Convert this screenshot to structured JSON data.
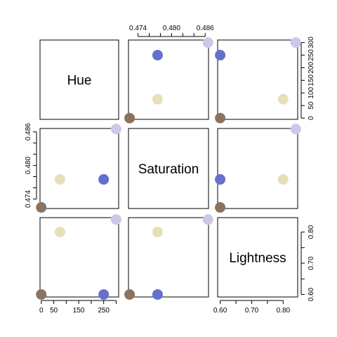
{
  "chart_data": {
    "type": "scatter",
    "variables": [
      "Hue",
      "Saturation",
      "Lightness"
    ],
    "points": [
      {
        "color": "#8B7360",
        "Hue": 0,
        "Saturation": 0.4725,
        "Lightness": 0.6
      },
      {
        "color": "#E6E0B8",
        "Hue": 75,
        "Saturation": 0.4775,
        "Lightness": 0.8
      },
      {
        "color": "#6670CC",
        "Hue": 250,
        "Saturation": 0.4775,
        "Lightness": 0.6
      },
      {
        "color": "#CCC8E8",
        "Hue": 300,
        "Saturation": 0.4865,
        "Lightness": 0.84
      }
    ],
    "axes": {
      "Hue": {
        "range": [
          -5,
          310
        ],
        "ticks": [
          0,
          50,
          100,
          150,
          200,
          250,
          300
        ],
        "labels": [
          "0",
          "50",
          "",
          "150",
          "",
          "250",
          ""
        ]
      },
      "Saturation": {
        "range": [
          0.4723,
          0.4866
        ],
        "ticks": [
          0.474,
          0.476,
          0.478,
          0.48,
          0.482,
          0.484,
          0.486
        ],
        "labels": [
          "0.474",
          "",
          "",
          "0.480",
          "",
          "",
          "0.486"
        ]
      },
      "Lightness": {
        "range": [
          0.592,
          0.846
        ],
        "ticks": [
          0.6,
          0.65,
          0.7,
          0.75,
          0.8
        ],
        "labels": [
          "0.60",
          "",
          "0.70",
          "",
          "0.80"
        ]
      }
    },
    "tick_labels_right": {
      "Hue": [
        "0",
        "50",
        "100",
        "150",
        "200",
        "250",
        "300"
      ]
    },
    "grid": false,
    "legend": "none",
    "title": ""
  }
}
